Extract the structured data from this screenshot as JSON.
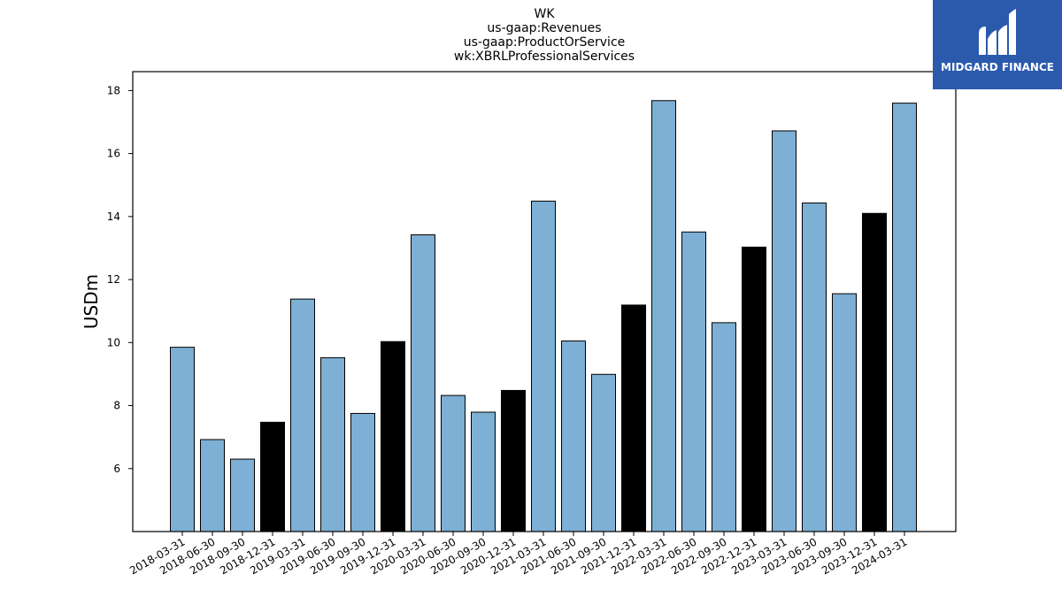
{
  "chart_data": {
    "type": "bar",
    "title_lines": [
      "WK",
      "us-gaap:Revenues",
      "us-gaap:ProductOrService",
      "wk:XBRLProfessionalServices"
    ],
    "ylabel": "USDm",
    "xlabel": "",
    "ylim": [
      4.0,
      18.6
    ],
    "yticks": [
      6,
      8,
      10,
      12,
      14,
      16,
      18
    ],
    "grid": false,
    "categories": [
      "2018-03-31",
      "2018-06-30",
      "2018-09-30",
      "2018-12-31",
      "2019-03-31",
      "2019-06-30",
      "2019-09-30",
      "2019-12-31",
      "2020-03-31",
      "2020-06-30",
      "2020-09-30",
      "2020-12-31",
      "2021-03-31",
      "2021-06-30",
      "2021-09-30",
      "2021-12-31",
      "2022-03-31",
      "2022-06-30",
      "2022-09-30",
      "2022-12-31",
      "2023-03-31",
      "2023-06-30",
      "2023-09-30",
      "2023-12-31",
      "2024-03-31"
    ],
    "values": [
      9.85,
      6.92,
      6.3,
      7.47,
      11.38,
      9.52,
      7.75,
      10.03,
      13.42,
      8.32,
      7.79,
      8.48,
      14.49,
      10.05,
      8.99,
      11.19,
      17.68,
      13.51,
      10.63,
      13.03,
      16.72,
      14.43,
      11.55,
      14.1,
      17.6
    ],
    "highlight_categories": [
      "2018-12-31",
      "2019-12-31",
      "2020-12-31",
      "2021-12-31",
      "2022-12-31",
      "2023-12-31"
    ],
    "colors": {
      "bar": "#7eafd4",
      "highlight": "#000000",
      "edge": "#000000"
    }
  },
  "logo": {
    "text": "MIDGARD FINANCE",
    "color": "#2b5aad"
  }
}
